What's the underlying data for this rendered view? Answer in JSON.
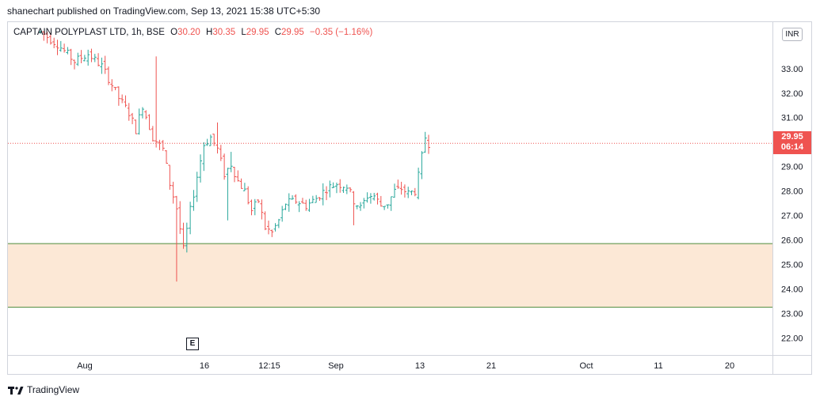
{
  "header": {
    "published": "shanechart published on TradingView.com, Sep 13, 2021 15:38 UTC+5:30"
  },
  "legend": {
    "symbol": "CAPTAIN POLYPLAST LTD, 1h, BSE",
    "open_label": "O",
    "open": "30.20",
    "high_label": "H",
    "high": "30.35",
    "low_label": "L",
    "low": "29.95",
    "close_label": "C",
    "close": "29.95",
    "change": "−0.35 (−1.16%)"
  },
  "currency": "INR",
  "last_price": {
    "price": "29.95",
    "countdown": "06:14"
  },
  "event_marker": "E",
  "footer": {
    "brand": "TradingView"
  },
  "colors": {
    "up": "#26a69a",
    "down": "#ef5350",
    "zone_fill": "#fce8d6",
    "zone_line": "#4c8a3a",
    "price_line": "#ef5350",
    "axis_text": "#131722"
  },
  "chart_data": {
    "type": "candlestick",
    "symbol": "CAPTAIN POLYPLAST LTD",
    "interval": "1h",
    "exchange": "BSE",
    "y_axis": {
      "ticks": [
        "33.00",
        "32.00",
        "31.00",
        "29.00",
        "28.00",
        "27.00",
        "26.00",
        "25.00",
        "24.00",
        "23.00",
        "22.00"
      ],
      "range": [
        21.3,
        34.9
      ]
    },
    "x_axis": {
      "labels": [
        "Aug",
        "16",
        "12:15",
        "Sep",
        "13",
        "21",
        "Oct",
        "11",
        "20"
      ]
    },
    "zone": {
      "low": 23.25,
      "high": 25.85
    },
    "price_line": 29.95,
    "price_path": [
      [
        0,
        34.5
      ],
      [
        5,
        34.0
      ],
      [
        10,
        33.3
      ],
      [
        14,
        33.6
      ],
      [
        18,
        33.1
      ],
      [
        20,
        32.6
      ],
      [
        23,
        31.8
      ],
      [
        26,
        31.2
      ],
      [
        28,
        30.5
      ],
      [
        30,
        31.5
      ],
      [
        33,
        30.2
      ],
      [
        36,
        29.7
      ],
      [
        38,
        28.3
      ],
      [
        40,
        27.3
      ],
      [
        42,
        25.6
      ],
      [
        44,
        27.2
      ],
      [
        46,
        28.6
      ],
      [
        48,
        29.9
      ],
      [
        50,
        30.2
      ],
      [
        52,
        29.7
      ],
      [
        54,
        28.7
      ],
      [
        56,
        29.1
      ],
      [
        58,
        28.4
      ],
      [
        60,
        28.0
      ],
      [
        62,
        27.2
      ],
      [
        64,
        27.6
      ],
      [
        66,
        26.5
      ],
      [
        68,
        26.3
      ],
      [
        70,
        26.8
      ],
      [
        72,
        27.5
      ],
      [
        75,
        27.6
      ],
      [
        78,
        27.4
      ],
      [
        81,
        27.7
      ],
      [
        84,
        28.1
      ],
      [
        87,
        28.3
      ],
      [
        90,
        28.2
      ],
      [
        92,
        27.6
      ],
      [
        94,
        27.3
      ],
      [
        96,
        27.8
      ],
      [
        98,
        27.8
      ],
      [
        100,
        27.4
      ],
      [
        102,
        27.5
      ],
      [
        104,
        28.0
      ],
      [
        106,
        28.1
      ],
      [
        108,
        27.9
      ],
      [
        110,
        28.0
      ],
      [
        111,
        28.6
      ],
      [
        112,
        29.4
      ],
      [
        113,
        30.2
      ],
      [
        114,
        29.95
      ]
    ],
    "spike_lows": [
      [
        40,
        24.3
      ],
      [
        55,
        26.8
      ],
      [
        92,
        26.6
      ]
    ],
    "spike_highs": [
      [
        34,
        33.5
      ],
      [
        52,
        30.8
      ],
      [
        56,
        29.6
      ]
    ]
  }
}
